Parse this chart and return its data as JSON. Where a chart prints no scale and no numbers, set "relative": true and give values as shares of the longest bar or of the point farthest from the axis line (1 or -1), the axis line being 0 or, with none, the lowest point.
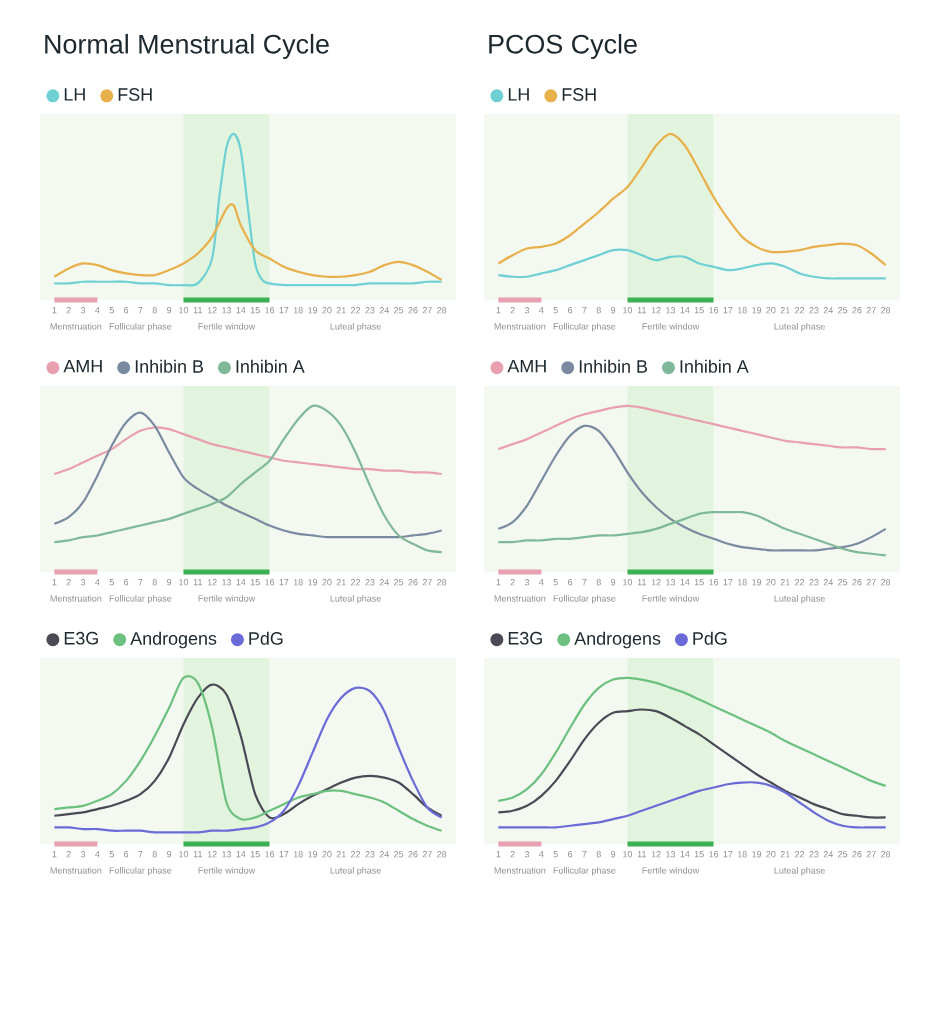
{
  "chart_data": [
    {
      "type": "line",
      "title": "Normal Menstrual Cycle",
      "relative": true,
      "legend": "top left",
      "xlim": [
        0,
        29
      ],
      "xticks": [
        1,
        2,
        3,
        4,
        5,
        6,
        7,
        8,
        9,
        10,
        11,
        12,
        13,
        14,
        15,
        16,
        17,
        18,
        19,
        20,
        21,
        22,
        23,
        24,
        25,
        26,
        27,
        28
      ],
      "series": [
        {
          "name": "LH",
          "color": "#6fd0d4",
          "x": [
            1,
            2,
            3,
            4,
            5,
            6,
            7,
            8,
            9,
            10,
            11,
            12,
            12.5,
            13,
            13.5,
            14,
            14.5,
            15,
            15.5,
            16,
            17,
            18,
            19,
            20,
            21,
            22,
            23,
            24,
            25,
            26,
            27,
            28
          ],
          "values": [
            0.1,
            0.1,
            0.11,
            0.11,
            0.11,
            0.11,
            0.1,
            0.1,
            0.09,
            0.09,
            0.1,
            0.25,
            0.62,
            0.92,
            1.0,
            0.9,
            0.55,
            0.22,
            0.12,
            0.1,
            0.09,
            0.09,
            0.09,
            0.09,
            0.09,
            0.09,
            0.1,
            0.1,
            0.1,
            0.1,
            0.11,
            0.11
          ]
        },
        {
          "name": "FSH",
          "color": "#e8b04a",
          "x": [
            1,
            2,
            3,
            4,
            5,
            6,
            7,
            8,
            9,
            10,
            11,
            12,
            13,
            13.5,
            14,
            15,
            16,
            17,
            18,
            19,
            20,
            21,
            22,
            23,
            24,
            25,
            26,
            27,
            28
          ],
          "values": [
            0.14,
            0.19,
            0.22,
            0.21,
            0.18,
            0.16,
            0.15,
            0.15,
            0.18,
            0.22,
            0.28,
            0.38,
            0.55,
            0.57,
            0.45,
            0.3,
            0.25,
            0.2,
            0.17,
            0.15,
            0.14,
            0.14,
            0.15,
            0.17,
            0.21,
            0.23,
            0.21,
            0.17,
            0.12
          ]
        },
        {
          "color": "#e8a0b0",
          "x": [
            1,
            4
          ],
          "values": [
            0,
            0
          ]
        },
        {
          "color": "#3cb054",
          "x": [
            10,
            16
          ],
          "values": [
            0,
            0
          ]
        }
      ],
      "bands": [
        {
          "axis": "x",
          "from": 10,
          "to": 16,
          "color": "#e2f4de"
        }
      ],
      "annotations": [
        "Menstruation",
        "Follicular phase",
        "Fertile window",
        "Luteal phase"
      ]
    },
    {
      "type": "line",
      "title": "PCOS Cycle",
      "relative": true,
      "legend": "top left",
      "xlim": [
        0,
        29
      ],
      "xticks": [
        1,
        2,
        3,
        4,
        5,
        6,
        7,
        8,
        9,
        10,
        11,
        12,
        13,
        14,
        15,
        16,
        17,
        18,
        19,
        20,
        21,
        22,
        23,
        24,
        25,
        26,
        27,
        28
      ],
      "x": [
        1,
        2,
        3,
        4,
        5,
        6,
        7,
        8,
        9,
        10,
        11,
        12,
        13,
        14,
        15,
        16,
        17,
        18,
        19,
        20,
        21,
        22,
        23,
        24,
        25,
        26,
        27,
        28
      ],
      "series": [
        {
          "name": "LH",
          "color": "#6fd0d4",
          "values": [
            0.15,
            0.14,
            0.14,
            0.16,
            0.18,
            0.21,
            0.24,
            0.27,
            0.3,
            0.3,
            0.27,
            0.24,
            0.26,
            0.26,
            0.22,
            0.2,
            0.18,
            0.19,
            0.21,
            0.22,
            0.2,
            0.16,
            0.14,
            0.13,
            0.13,
            0.13,
            0.13,
            0.13
          ]
        },
        {
          "name": "FSH",
          "color": "#e8b04a",
          "values": [
            0.22,
            0.27,
            0.31,
            0.32,
            0.34,
            0.39,
            0.46,
            0.53,
            0.61,
            0.68,
            0.8,
            0.93,
            1.0,
            0.93,
            0.78,
            0.62,
            0.49,
            0.38,
            0.32,
            0.29,
            0.29,
            0.3,
            0.32,
            0.33,
            0.34,
            0.33,
            0.28,
            0.21
          ]
        },
        {
          "color": "#e8a0b0",
          "x": [
            1,
            4
          ],
          "values": [
            0,
            0
          ]
        },
        {
          "color": "#3cb054",
          "x": [
            10,
            16
          ],
          "values": [
            0,
            0
          ]
        }
      ],
      "bands": [
        {
          "axis": "x",
          "from": 10,
          "to": 16,
          "color": "#e2f4de"
        }
      ],
      "annotations": [
        "Menstruation",
        "Follicular phase",
        "Fertile window",
        "Luteal phase"
      ]
    },
    {
      "type": "line",
      "relative": true,
      "legend": "top left",
      "xlim": [
        0,
        29
      ],
      "xticks": [
        1,
        2,
        3,
        4,
        5,
        6,
        7,
        8,
        9,
        10,
        11,
        12,
        13,
        14,
        15,
        16,
        17,
        18,
        19,
        20,
        21,
        22,
        23,
        24,
        25,
        26,
        27,
        28
      ],
      "x": [
        1,
        2,
        3,
        4,
        5,
        6,
        7,
        8,
        9,
        10,
        11,
        12,
        13,
        14,
        15,
        16,
        17,
        18,
        19,
        20,
        21,
        22,
        23,
        24,
        25,
        26,
        27,
        28
      ],
      "series": [
        {
          "name": "AMH",
          "color": "#e8a0b0",
          "values": [
            0.59,
            0.62,
            0.66,
            0.7,
            0.74,
            0.8,
            0.85,
            0.87,
            0.86,
            0.83,
            0.8,
            0.77,
            0.75,
            0.73,
            0.71,
            0.69,
            0.67,
            0.66,
            0.65,
            0.64,
            0.63,
            0.62,
            0.62,
            0.61,
            0.61,
            0.6,
            0.6,
            0.59
          ]
        },
        {
          "name": "Inhibin B",
          "color": "#7a8aa0",
          "values": [
            0.29,
            0.33,
            0.42,
            0.58,
            0.76,
            0.9,
            0.96,
            0.88,
            0.72,
            0.57,
            0.5,
            0.45,
            0.4,
            0.36,
            0.32,
            0.28,
            0.25,
            0.23,
            0.22,
            0.21,
            0.21,
            0.21,
            0.21,
            0.21,
            0.21,
            0.22,
            0.23,
            0.25
          ]
        },
        {
          "name": "Inhibin A",
          "color": "#80b89a",
          "values": [
            0.18,
            0.19,
            0.21,
            0.22,
            0.24,
            0.26,
            0.28,
            0.3,
            0.32,
            0.35,
            0.38,
            0.41,
            0.45,
            0.53,
            0.6,
            0.67,
            0.8,
            0.92,
            1.0,
            0.97,
            0.88,
            0.72,
            0.52,
            0.34,
            0.22,
            0.17,
            0.13,
            0.12
          ]
        },
        {
          "color": "#e8a0b0",
          "x": [
            1,
            4
          ],
          "values": [
            0,
            0
          ]
        },
        {
          "color": "#3cb054",
          "x": [
            10,
            16
          ],
          "values": [
            0,
            0
          ]
        }
      ],
      "bands": [
        {
          "axis": "x",
          "from": 10,
          "to": 16,
          "color": "#e2f4de"
        }
      ],
      "annotations": [
        "Menstruation",
        "Follicular phase",
        "Fertile window",
        "Luteal phase"
      ]
    },
    {
      "type": "line",
      "relative": true,
      "legend": "top left",
      "xlim": [
        0,
        29
      ],
      "xticks": [
        1,
        2,
        3,
        4,
        5,
        6,
        7,
        8,
        9,
        10,
        11,
        12,
        13,
        14,
        15,
        16,
        17,
        18,
        19,
        20,
        21,
        22,
        23,
        24,
        25,
        26,
        27,
        28
      ],
      "x": [
        1,
        2,
        3,
        4,
        5,
        6,
        7,
        8,
        9,
        10,
        11,
        12,
        13,
        14,
        15,
        16,
        17,
        18,
        19,
        20,
        21,
        22,
        23,
        24,
        25,
        26,
        27,
        28
      ],
      "series": [
        {
          "name": "AMH",
          "color": "#e8a0b0",
          "values": [
            0.74,
            0.77,
            0.8,
            0.84,
            0.88,
            0.92,
            0.95,
            0.97,
            0.99,
            1.0,
            0.99,
            0.97,
            0.95,
            0.93,
            0.91,
            0.89,
            0.87,
            0.85,
            0.83,
            0.81,
            0.79,
            0.78,
            0.77,
            0.76,
            0.75,
            0.75,
            0.74,
            0.74
          ]
        },
        {
          "name": "Inhibin B",
          "color": "#7a8aa0",
          "values": [
            0.26,
            0.3,
            0.4,
            0.55,
            0.7,
            0.82,
            0.88,
            0.85,
            0.74,
            0.6,
            0.48,
            0.39,
            0.32,
            0.27,
            0.23,
            0.2,
            0.17,
            0.15,
            0.14,
            0.13,
            0.13,
            0.13,
            0.13,
            0.14,
            0.15,
            0.17,
            0.21,
            0.26
          ]
        },
        {
          "name": "Inhibin A",
          "color": "#80b89a",
          "values": [
            0.18,
            0.18,
            0.19,
            0.19,
            0.2,
            0.2,
            0.21,
            0.22,
            0.22,
            0.23,
            0.24,
            0.26,
            0.29,
            0.32,
            0.35,
            0.36,
            0.36,
            0.36,
            0.34,
            0.3,
            0.26,
            0.23,
            0.2,
            0.17,
            0.14,
            0.12,
            0.11,
            0.1
          ]
        },
        {
          "color": "#e8a0b0",
          "x": [
            1,
            4
          ],
          "values": [
            0,
            0
          ]
        },
        {
          "color": "#3cb054",
          "x": [
            10,
            16
          ],
          "values": [
            0,
            0
          ]
        }
      ],
      "bands": [
        {
          "axis": "x",
          "from": 10,
          "to": 16,
          "color": "#e2f4de"
        }
      ],
      "annotations": [
        "Menstruation",
        "Follicular phase",
        "Fertile window",
        "Luteal phase"
      ]
    },
    {
      "type": "line",
      "relative": true,
      "legend": "top left",
      "xlim": [
        0,
        29
      ],
      "xticks": [
        1,
        2,
        3,
        4,
        5,
        6,
        7,
        8,
        9,
        10,
        11,
        12,
        13,
        14,
        15,
        16,
        17,
        18,
        19,
        20,
        21,
        22,
        23,
        24,
        25,
        26,
        27,
        28
      ],
      "x": [
        1,
        2,
        3,
        4,
        5,
        6,
        7,
        8,
        9,
        10,
        11,
        12,
        13,
        14,
        15,
        16,
        17,
        18,
        19,
        20,
        21,
        22,
        23,
        24,
        25,
        26,
        27,
        28
      ],
      "series": [
        {
          "name": "E3G",
          "color": "#4a4a55",
          "values": [
            0.17,
            0.18,
            0.19,
            0.21,
            0.23,
            0.26,
            0.3,
            0.38,
            0.52,
            0.72,
            0.88,
            0.96,
            0.9,
            0.65,
            0.3,
            0.16,
            0.18,
            0.24,
            0.29,
            0.33,
            0.37,
            0.4,
            0.41,
            0.4,
            0.37,
            0.3,
            0.22,
            0.17
          ]
        },
        {
          "name": "Androgens",
          "color": "#6cc080",
          "values": [
            0.21,
            0.22,
            0.23,
            0.26,
            0.3,
            0.38,
            0.5,
            0.65,
            0.82,
            1.0,
            0.97,
            0.7,
            0.25,
            0.15,
            0.16,
            0.2,
            0.24,
            0.28,
            0.3,
            0.32,
            0.32,
            0.3,
            0.28,
            0.25,
            0.2,
            0.15,
            0.11,
            0.08
          ]
        },
        {
          "name": "PdG",
          "color": "#6b6bd8",
          "values": [
            0.1,
            0.1,
            0.09,
            0.09,
            0.08,
            0.08,
            0.08,
            0.07,
            0.07,
            0.07,
            0.07,
            0.08,
            0.08,
            0.09,
            0.1,
            0.13,
            0.2,
            0.35,
            0.55,
            0.75,
            0.88,
            0.94,
            0.92,
            0.8,
            0.58,
            0.38,
            0.22,
            0.16
          ]
        },
        {
          "color": "#e8a0b0",
          "x": [
            1,
            4
          ],
          "values": [
            0,
            0
          ]
        },
        {
          "color": "#3cb054",
          "x": [
            10,
            16
          ],
          "values": [
            0,
            0
          ]
        }
      ],
      "bands": [
        {
          "axis": "x",
          "from": 10,
          "to": 16,
          "color": "#e2f4de"
        }
      ],
      "annotations": [
        "Menstruation",
        "Follicular phase",
        "Fertile window",
        "Luteal phase"
      ]
    },
    {
      "type": "line",
      "relative": true,
      "legend": "top left",
      "xlim": [
        0,
        29
      ],
      "xticks": [
        1,
        2,
        3,
        4,
        5,
        6,
        7,
        8,
        9,
        10,
        11,
        12,
        13,
        14,
        15,
        16,
        17,
        18,
        19,
        20,
        21,
        22,
        23,
        24,
        25,
        26,
        27,
        28
      ],
      "x": [
        1,
        2,
        3,
        4,
        5,
        6,
        7,
        8,
        9,
        10,
        11,
        12,
        13,
        14,
        15,
        16,
        17,
        18,
        19,
        20,
        21,
        22,
        23,
        24,
        25,
        26,
        27,
        28
      ],
      "series": [
        {
          "name": "E3G",
          "color": "#4a4a55",
          "values": [
            0.19,
            0.2,
            0.23,
            0.29,
            0.38,
            0.5,
            0.63,
            0.73,
            0.79,
            0.8,
            0.81,
            0.8,
            0.76,
            0.71,
            0.66,
            0.6,
            0.54,
            0.48,
            0.42,
            0.37,
            0.32,
            0.28,
            0.24,
            0.21,
            0.18,
            0.17,
            0.16,
            0.16
          ]
        },
        {
          "name": "Androgens",
          "color": "#6cc080",
          "values": [
            0.26,
            0.28,
            0.33,
            0.42,
            0.55,
            0.7,
            0.84,
            0.94,
            0.99,
            1.0,
            0.99,
            0.97,
            0.94,
            0.91,
            0.87,
            0.83,
            0.79,
            0.75,
            0.71,
            0.67,
            0.62,
            0.58,
            0.54,
            0.5,
            0.46,
            0.42,
            0.38,
            0.35
          ]
        },
        {
          "name": "PdG",
          "color": "#6b6bd8",
          "values": [
            0.1,
            0.1,
            0.1,
            0.1,
            0.1,
            0.11,
            0.12,
            0.13,
            0.15,
            0.17,
            0.2,
            0.23,
            0.26,
            0.29,
            0.32,
            0.34,
            0.36,
            0.37,
            0.37,
            0.35,
            0.31,
            0.25,
            0.19,
            0.14,
            0.11,
            0.1,
            0.1,
            0.1
          ]
        },
        {
          "color": "#e8a0b0",
          "x": [
            1,
            4
          ],
          "values": [
            0,
            0
          ]
        },
        {
          "color": "#3cb054",
          "x": [
            10,
            16
          ],
          "values": [
            0,
            0
          ]
        }
      ],
      "bands": [
        {
          "axis": "x",
          "from": 10,
          "to": 16,
          "color": "#e2f4de"
        }
      ],
      "annotations": [
        "Menstruation",
        "Follicular phase",
        "Fertile window",
        "Luteal phase"
      ]
    }
  ]
}
